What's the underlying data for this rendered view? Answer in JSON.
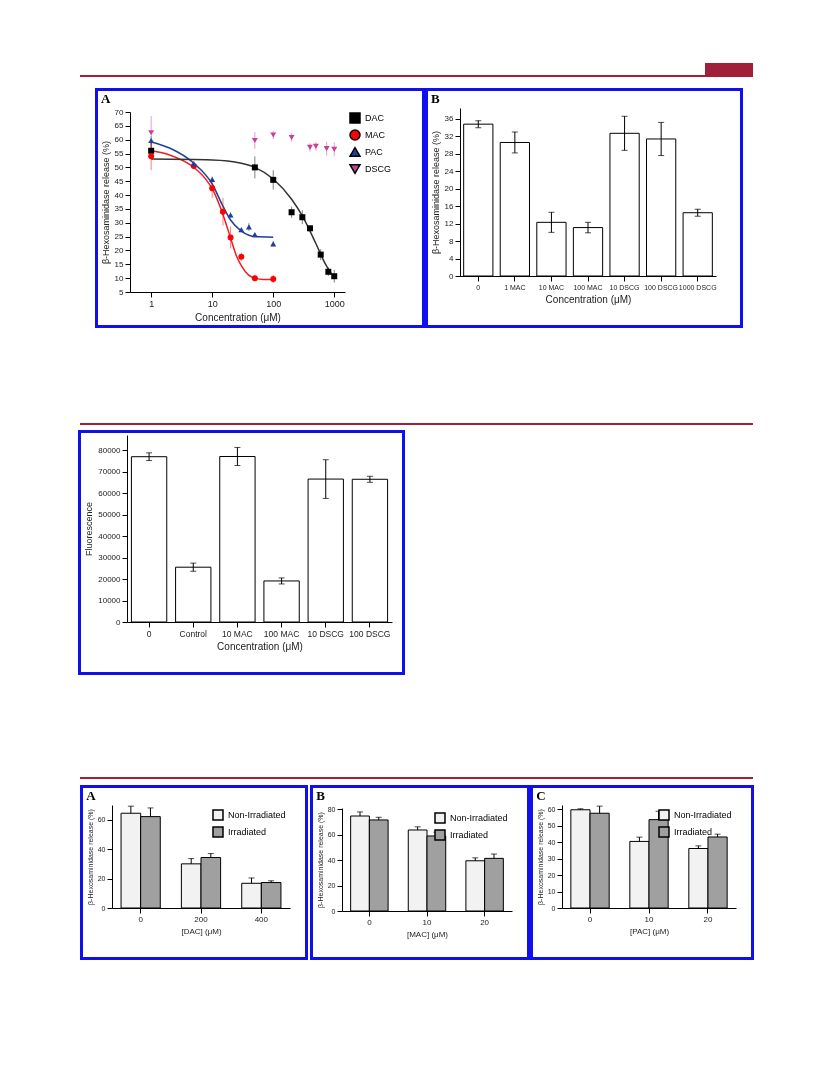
{
  "chart_data": [
    {
      "type": "scatter",
      "title": "A",
      "xlabel": "Concentration (μM)",
      "ylabel": "β-Hexosaminidase release (%)",
      "log": "x",
      "xlim": [
        0.45,
        1500
      ],
      "xticks": [
        1,
        10,
        100,
        1000
      ],
      "ylim": [
        5,
        70
      ],
      "yticks": [
        5,
        10,
        15,
        20,
        25,
        30,
        35,
        40,
        45,
        50,
        55,
        60,
        65,
        70
      ],
      "legend": "top right",
      "series": [
        {
          "name": "DAC",
          "color": "#000000",
          "marker": "square",
          "x": [
            1,
            50,
            100,
            200,
            300,
            400,
            600,
            800,
            1000
          ],
          "values": [
            56,
            50,
            45.5,
            33.8,
            32,
            28,
            18.5,
            12.3,
            10.7
          ],
          "errors": [
            3,
            4,
            3.5,
            2,
            2.5,
            1,
            2,
            1.5,
            2.3
          ]
        },
        {
          "name": "MAC",
          "color": "#ff0000",
          "marker": "circle",
          "x": [
            1,
            5,
            10,
            15,
            20,
            30,
            50,
            100
          ],
          "values": [
            54,
            50.5,
            42.5,
            34,
            24.7,
            17.7,
            10,
            9.7
          ],
          "errors": [
            5,
            1,
            3.5,
            5,
            4,
            1.5,
            1,
            1.5
          ]
        },
        {
          "name": "PAC",
          "color": "#1f3f99",
          "marker": "triangle",
          "x": [
            1,
            5,
            10,
            20,
            30,
            40,
            50,
            100
          ],
          "values": [
            59.7,
            51.3,
            45.7,
            32.8,
            27.5,
            28.5,
            25.7,
            22.4
          ],
          "errors": [
            1.5,
            1,
            1,
            1,
            0.5,
            1.5,
            0.5,
            1
          ]
        },
        {
          "name": "DSCG",
          "color": "#c8409a",
          "marker": "triangle-down",
          "x": [
            1,
            50,
            100,
            200,
            400,
            500,
            750,
            1000
          ],
          "values": [
            62.5,
            59.7,
            61.7,
            60.8,
            57.2,
            57.6,
            56.8,
            56.5
          ],
          "errors": [
            6,
            3,
            1.5,
            1.5,
            1.5,
            1.5,
            2.5,
            2.5
          ]
        },
        {
          "type": "line",
          "color": "#333333",
          "x": [
            1,
            10,
            30,
            50,
            100,
            200,
            300,
            500,
            700,
            1000
          ],
          "values": [
            53,
            52.7,
            51.5,
            50,
            45.8,
            38.5,
            32.5,
            22.5,
            15.5,
            10
          ]
        },
        {
          "type": "line",
          "color": "#e82020",
          "x": [
            1,
            2,
            5,
            8,
            10,
            15,
            20,
            25,
            30,
            40,
            50,
            70,
            100
          ],
          "values": [
            56,
            54.5,
            50,
            45.5,
            42.3,
            33,
            24.5,
            18,
            14.5,
            11,
            10,
            9.5,
            9.5
          ]
        },
        {
          "type": "line",
          "color": "#1f3f99",
          "x": [
            1,
            2,
            5,
            10,
            15,
            20,
            30,
            40,
            50,
            100
          ],
          "values": [
            59.2,
            57,
            51.5,
            44,
            36,
            31,
            27,
            25.5,
            25,
            24.8
          ]
        }
      ]
    },
    {
      "type": "bar",
      "title": "B",
      "xlabel": "Concentration (μM)",
      "ylabel": "β-Hexosaminidase release (%)",
      "categories": [
        "0",
        "1 MAC",
        "10 MAC",
        "100 MAC",
        "10 DSCG",
        "100 DSCG",
        "1000 DSCG"
      ],
      "values": [
        34.8,
        30.6,
        12.3,
        11.1,
        32.7,
        31.4,
        14.5
      ],
      "errors": [
        0.8,
        2.4,
        2.3,
        1.2,
        3.9,
        3.8,
        0.8
      ],
      "color": "#ffffff",
      "ylim": [
        0,
        38.5
      ],
      "yticks": [
        0,
        4,
        8,
        12,
        16,
        20,
        24,
        28,
        32,
        36
      ]
    },
    {
      "type": "bar",
      "xlabel": "Concentration (μM)",
      "ylabel": "Fluorescence",
      "categories": [
        "0",
        "Control",
        "10 MAC",
        "100 MAC",
        "10 DSCG",
        "100 DSCG"
      ],
      "values": [
        76900,
        25500,
        77000,
        19100,
        66500,
        66400
      ],
      "errors": [
        1800,
        1900,
        4200,
        1400,
        9000,
        1400
      ],
      "color": "#ffffff",
      "ylim": [
        0,
        87000
      ],
      "yticks": [
        0,
        10000,
        20000,
        30000,
        40000,
        50000,
        60000,
        70000,
        80000
      ]
    },
    {
      "type": "bar",
      "title": "A",
      "xlabel": "[DAC] (μM)",
      "ylabel": "β-Hexosaminidase release (%)",
      "categories": [
        "0",
        "200",
        "400"
      ],
      "ylim": [
        0,
        70
      ],
      "yticks": [
        0,
        20,
        40,
        60
      ],
      "legend": "top right",
      "series": [
        {
          "name": "Non-Irradiated",
          "color": "#f2f2f2",
          "values": [
            64.4,
            30,
            16.8
          ],
          "errors": [
            [
              64.4,
              69.2
            ],
            [
              30,
              33.6
            ],
            [
              16.8,
              20.4
            ]
          ]
        },
        {
          "name": "Irradiated",
          "color": "#a0a0a0",
          "values": [
            62.1,
            34.3,
            17.3
          ],
          "errors": [
            [
              62.1,
              68
            ],
            [
              34.3,
              37
            ],
            [
              17.3,
              18.5
            ]
          ]
        }
      ]
    },
    {
      "type": "bar",
      "title": "B",
      "xlabel": "[MAC] (μM)",
      "ylabel": "β-Hexosaminidase release (%)",
      "categories": [
        "0",
        "10",
        "20"
      ],
      "ylim": [
        0,
        81
      ],
      "yticks": [
        0,
        20,
        40,
        60,
        80
      ],
      "legend": "top right",
      "series": [
        {
          "name": "Non-Irradiated",
          "color": "#f2f2f2",
          "values": [
            74.7,
            63.7,
            39.5
          ],
          "errors": [
            [
              74.7,
              77.9
            ],
            [
              63.7,
              66.2
            ],
            [
              39.5,
              41.8
            ]
          ]
        },
        {
          "name": "Irradiated",
          "color": "#a0a0a0",
          "values": [
            71.6,
            59,
            41.4
          ],
          "errors": [
            [
              71.6,
              73.7
            ],
            [
              59,
              62
            ],
            [
              41.4,
              44.8
            ]
          ]
        }
      ]
    },
    {
      "type": "bar",
      "title": "C",
      "xlabel": "[PAC] (μM)",
      "ylabel": "β-Hexosaminidase release (%)",
      "categories": [
        "0",
        "10",
        "20"
      ],
      "ylim": [
        0,
        62.5
      ],
      "yticks": [
        0,
        10,
        20,
        30,
        40,
        50,
        60
      ],
      "legend": "top right",
      "series": [
        {
          "name": "Non-Irradiated",
          "color": "#f2f2f2",
          "values": [
            59.6,
            40.4,
            36.1
          ],
          "errors": [
            [
              59.6,
              60.2
            ],
            [
              40.4,
              43
            ],
            [
              36.1,
              37.7
            ]
          ]
        },
        {
          "name": "Irradiated",
          "color": "#a0a0a0",
          "values": [
            57.5,
            53.6,
            43.1
          ],
          "errors": [
            [
              57.5,
              61.8
            ],
            [
              53.6,
              58.7
            ],
            [
              43.1,
              44.8
            ]
          ]
        }
      ]
    }
  ]
}
